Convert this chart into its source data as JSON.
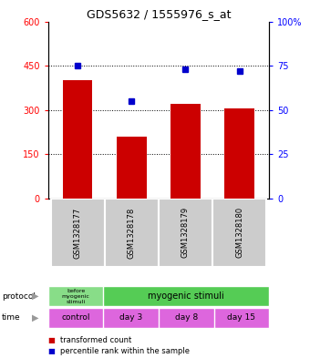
{
  "title": "GDS5632 / 1555976_s_at",
  "samples": [
    "GSM1328177",
    "GSM1328178",
    "GSM1328179",
    "GSM1328180"
  ],
  "bar_values": [
    400,
    210,
    320,
    305
  ],
  "scatter_values": [
    75,
    55,
    73,
    72
  ],
  "bar_color": "#cc0000",
  "scatter_color": "#0000cc",
  "ylim_left": [
    0,
    600
  ],
  "ylim_right": [
    0,
    100
  ],
  "yticks_left": [
    0,
    150,
    300,
    450,
    600
  ],
  "yticks_right": [
    0,
    25,
    50,
    75,
    100
  ],
  "ytick_labels_right": [
    "0",
    "25",
    "50",
    "75",
    "100%"
  ],
  "hlines": [
    150,
    300,
    450
  ],
  "proto_col1_label": "before\nmyogenic\nstimuli",
  "proto_col2_label": "myogenic stimuli",
  "proto_col1_color": "#88dd88",
  "proto_col2_color": "#55cc55",
  "time_labels": [
    "control",
    "day 3",
    "day 8",
    "day 15"
  ],
  "time_color": "#dd66dd",
  "legend_items": [
    {
      "color": "#cc0000",
      "label": "transformed count"
    },
    {
      "color": "#0000cc",
      "label": "percentile rank within the sample"
    }
  ],
  "bar_width": 0.55,
  "sample_box_color": "#cccccc",
  "protocol_label": "protocol",
  "time_label": "time"
}
